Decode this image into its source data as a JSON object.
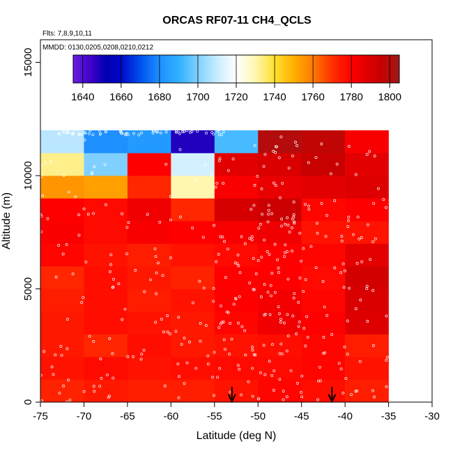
{
  "chart_data": {
    "type": "heatmap",
    "title": "ORCAS RF07-11 CH4_QCLS",
    "notes": [
      "Flts: 7,8,9,10,11",
      "MMDD: 0130,0205,0208,0210,0212"
    ],
    "xlabel": "Latitude (deg N)",
    "ylabel": "Altitude (m)",
    "xlim": [
      -75,
      -30
    ],
    "ylim": [
      0,
      16000
    ],
    "x_ticks": [
      -75,
      -70,
      -65,
      -60,
      -55,
      -50,
      -45,
      -40,
      -35,
      -30
    ],
    "y_ticks": [
      0,
      5000,
      10000,
      15000
    ],
    "colorbar": {
      "min": 1635,
      "max": 1805,
      "ticks": [
        1640,
        1660,
        1680,
        1700,
        1720,
        1740,
        1760,
        1780,
        1800
      ],
      "stops": [
        {
          "v": 1635,
          "c": "#6a1fe0"
        },
        {
          "v": 1645,
          "c": "#3a00c8"
        },
        {
          "v": 1652,
          "c": "#0000b0"
        },
        {
          "v": 1660,
          "c": "#0008c8"
        },
        {
          "v": 1670,
          "c": "#0050f0"
        },
        {
          "v": 1680,
          "c": "#1e90ff"
        },
        {
          "v": 1690,
          "c": "#30b0ff"
        },
        {
          "v": 1700,
          "c": "#80d0ff"
        },
        {
          "v": 1710,
          "c": "#c8ecff"
        },
        {
          "v": 1720,
          "c": "#ffffff"
        },
        {
          "v": 1730,
          "c": "#fff6b0"
        },
        {
          "v": 1740,
          "c": "#ffe030"
        },
        {
          "v": 1750,
          "c": "#ffb000"
        },
        {
          "v": 1760,
          "c": "#ff7a00"
        },
        {
          "v": 1770,
          "c": "#ff3000"
        },
        {
          "v": 1780,
          "c": "#ff0000"
        },
        {
          "v": 1795,
          "c": "#c80000"
        },
        {
          "v": 1805,
          "c": "#a01818"
        }
      ]
    },
    "x_edges": [
      -75,
      -70,
      -65,
      -60,
      -55,
      -50,
      -45,
      -40,
      -35
    ],
    "y_edges": [
      0,
      1000,
      2000,
      3000,
      4000,
      5000,
      6000,
      7000,
      8000,
      9000,
      10000,
      11000,
      12000
    ],
    "z": [
      [
        1773,
        1775,
        1774,
        1774,
        1776,
        1779,
        1777,
        1774
      ],
      [
        1776,
        1778,
        1776,
        1777,
        1778,
        1778,
        1779,
        1776
      ],
      [
        1775,
        1772,
        1777,
        1775,
        1776,
        1777,
        1779,
        1774
      ],
      [
        1775,
        1777,
        1776,
        1775,
        1779,
        1784,
        1780,
        1789
      ],
      [
        1774,
        1777,
        1774,
        1776,
        1780,
        1783,
        1779,
        1790
      ],
      [
        1772,
        1777,
        1775,
        1773,
        1780,
        1780,
        1778,
        1792
      ],
      [
        1779,
        1776,
        1774,
        1776,
        1778,
        1780,
        1779,
        1787
      ],
      [
        1781,
        1778,
        1782,
        1780,
        1782,
        1784,
        1776,
        1776
      ],
      [
        1780,
        1778,
        1784,
        1772,
        1791,
        1794,
        1779,
        1780
      ],
      [
        1755,
        1753,
        1772,
        1730,
        1781,
        1786,
        1788,
        1789
      ],
      [
        1733,
        1700,
        1780,
        1712,
        1788,
        1790,
        1795,
        1788
      ],
      [
        1708,
        1680,
        1683,
        1648,
        1693,
        1800,
        1797,
        1782
      ]
    ],
    "arrows": [
      -53,
      -41.5
    ]
  }
}
